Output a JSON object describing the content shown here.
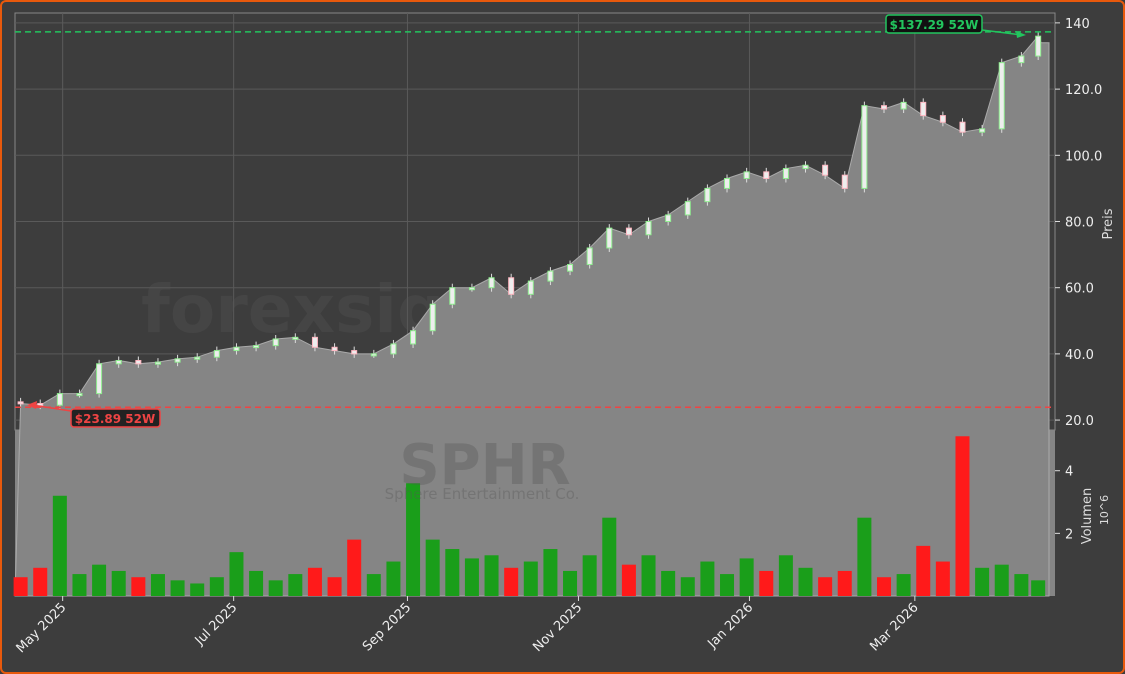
{
  "chart_data": {
    "type": "candlestick-with-volume",
    "ticker": "SPHR",
    "company": "Sphere Entertainment Co.",
    "watermark": "forexsignale.trade",
    "price_ylabel": "Preis",
    "volume_ylabel": "Volumen",
    "volume_unit": "10^6",
    "price_ylim": [
      17,
      143
    ],
    "volume_ylim": [
      0,
      5.3
    ],
    "price_ticks": [
      "20.0",
      "40.0",
      "60.0",
      "80.0",
      "100.0",
      "120.0",
      "140"
    ],
    "volume_ticks": [
      "2",
      "4"
    ],
    "x_ticks": [
      {
        "date": "2025-05-01",
        "label": "May 2025"
      },
      {
        "date": "2025-07-01",
        "label": "Jul 2025"
      },
      {
        "date": "2025-09-01",
        "label": "Sep 2025"
      },
      {
        "date": "2025-11-01",
        "label": "Nov 2025"
      },
      {
        "date": "2026-01-01",
        "label": "Jan 2026"
      },
      {
        "date": "2026-03-01",
        "label": "Mar 2026"
      }
    ],
    "x_range": [
      "2025-04-14",
      "2026-04-20"
    ],
    "grid": true,
    "high_52w": {
      "value": 137.29,
      "label": "$137.29 52W",
      "color": "#22c55e"
    },
    "low_52w": {
      "value": 23.89,
      "label": "$23.89 52W",
      "color": "#ef4444"
    },
    "up_color": "#90ee90",
    "down_color": "#ffb6c1",
    "vol_up_color": "#1a9e1a",
    "vol_down_color": "#ff1a1a",
    "dates": [
      "2025-04-16",
      "2025-04-23",
      "2025-04-30",
      "2025-05-07",
      "2025-05-14",
      "2025-05-21",
      "2025-05-28",
      "2025-06-04",
      "2025-06-11",
      "2025-06-18",
      "2025-06-25",
      "2025-07-02",
      "2025-07-09",
      "2025-07-16",
      "2025-07-23",
      "2025-07-30",
      "2025-08-06",
      "2025-08-13",
      "2025-08-20",
      "2025-08-27",
      "2025-09-03",
      "2025-09-10",
      "2025-09-17",
      "2025-09-24",
      "2025-10-01",
      "2025-10-08",
      "2025-10-15",
      "2025-10-22",
      "2025-10-29",
      "2025-11-05",
      "2025-11-12",
      "2025-11-19",
      "2025-11-26",
      "2025-12-03",
      "2025-12-10",
      "2025-12-17",
      "2025-12-24",
      "2025-12-31",
      "2026-01-07",
      "2026-01-14",
      "2026-01-21",
      "2026-01-28",
      "2026-02-04",
      "2026-02-11",
      "2026-02-18",
      "2026-02-25",
      "2026-03-04",
      "2026-03-11",
      "2026-03-18",
      "2026-03-25",
      "2026-04-01",
      "2026-04-08",
      "2026-04-14"
    ],
    "close": [
      25,
      24.5,
      28,
      28,
      37,
      38,
      37,
      37.5,
      38.5,
      39,
      41,
      42,
      42.5,
      44.5,
      45,
      42,
      41,
      40,
      40,
      43,
      47,
      55,
      60,
      60,
      63,
      58,
      62,
      65,
      67,
      72,
      78,
      76,
      80,
      82,
      86,
      90,
      93,
      95,
      93,
      96,
      97,
      94,
      90,
      115,
      114,
      116,
      112,
      110,
      107,
      108,
      128,
      130,
      136
    ],
    "volume": [
      0.6,
      0.9,
      3.2,
      0.7,
      1.0,
      0.8,
      0.6,
      0.7,
      0.5,
      0.4,
      0.6,
      1.4,
      0.8,
      0.5,
      0.7,
      0.9,
      0.6,
      1.8,
      0.7,
      1.1,
      3.6,
      1.8,
      1.5,
      1.2,
      1.3,
      0.9,
      1.1,
      1.5,
      0.8,
      1.3,
      2.5,
      1.0,
      1.3,
      0.8,
      0.6,
      1.1,
      0.7,
      1.2,
      0.8,
      1.3,
      0.9,
      0.6,
      0.8,
      2.5,
      0.6,
      0.7,
      1.6,
      1.1,
      5.1,
      0.9,
      1.0,
      0.7,
      0.5
    ]
  }
}
